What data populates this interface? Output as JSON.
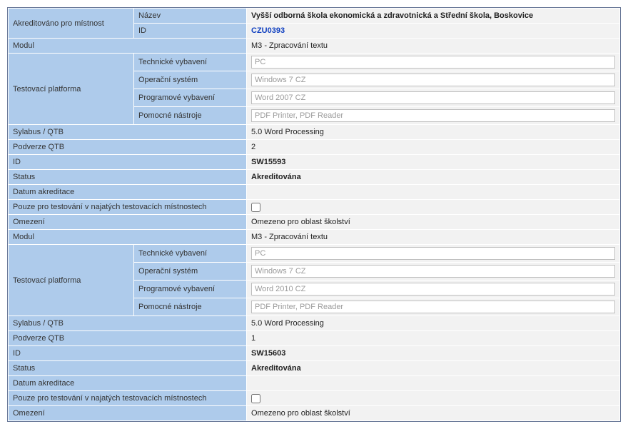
{
  "header": {
    "akreditovano_label": "Akreditováno pro místnost",
    "nazev_label": "Název",
    "nazev_value": "Vyšší odborná škola ekonomická a zdravotnická a Střední škola, Boskovice",
    "id_label": "ID",
    "id_value": "CZU0393"
  },
  "labels": {
    "modul": "Modul",
    "testovaci_platforma": "Testovací platforma",
    "technicke_vybaveni": "Technické vybavení",
    "operacni_system": "Operační systém",
    "programove_vybaveni": "Programové vybavení",
    "pomocne_nastroje": "Pomocné nástroje",
    "sylabus_qtb": "Sylabus / QTB",
    "podverze_qtb": "Podverze QTB",
    "id": "ID",
    "status": "Status",
    "datum_akreditace": "Datum akreditace",
    "pouze_pro_testovani": "Pouze pro testování v najatých testovacích místnostech",
    "omezeni": "Omezení"
  },
  "block1": {
    "modul": "M3 - Zpracování textu",
    "tech": "PC",
    "os": "Windows 7 CZ",
    "prog": "Word 2007 CZ",
    "pom": "PDF Printer, PDF Reader",
    "sylabus": "5.0 Word Processing",
    "podverze": "2",
    "id": "SW15593",
    "status": "Akreditována",
    "datum": "",
    "omezeni": "Omezeno pro oblast školství"
  },
  "block2": {
    "modul": "M3 - Zpracování textu",
    "tech": "PC",
    "os": "Windows 7 CZ",
    "prog": "Word 2010 CZ",
    "pom": "PDF Printer, PDF Reader",
    "sylabus": "5.0 Word Processing",
    "podverze": "1",
    "id": "SW15603",
    "status": "Akreditována",
    "datum": "",
    "omezeni": "Omezeno pro oblast školství"
  }
}
